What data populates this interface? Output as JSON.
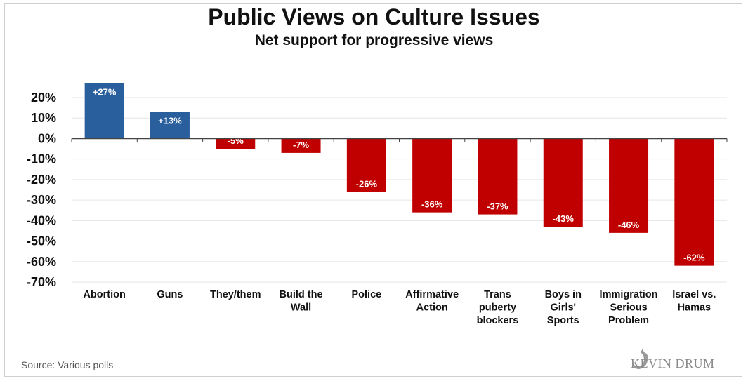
{
  "chart_data": {
    "type": "bar",
    "title": "Public Views on Culture Issues",
    "subtitle": "Net support for progressive views",
    "xlabel": "",
    "ylabel": "",
    "ylim": [
      -70,
      20
    ],
    "yticks": [
      20,
      10,
      0,
      -10,
      -20,
      -30,
      -40,
      -50,
      -60,
      -70
    ],
    "ytick_labels": [
      "20%",
      "10%",
      "0%",
      "-10%",
      "-20%",
      "-30%",
      "-40%",
      "-50%",
      "-60%",
      "-70%"
    ],
    "grid": true,
    "categories": [
      [
        "Abortion"
      ],
      [
        "Guns"
      ],
      [
        "They/them"
      ],
      [
        "Build the",
        "Wall"
      ],
      [
        "Police"
      ],
      [
        "Affirmative",
        "Action"
      ],
      [
        "Trans",
        "puberty",
        "blockers"
      ],
      [
        "Boys in",
        "Girls'",
        "Sports"
      ],
      [
        "Immigration",
        "Serious",
        "Problem"
      ],
      [
        "Israel vs.",
        "Hamas"
      ]
    ],
    "values": [
      27,
      13,
      -5,
      -7,
      -26,
      -36,
      -37,
      -43,
      -46,
      -62
    ],
    "data_labels": [
      "+27%",
      "+13%",
      "-5%",
      "-7%",
      "-26%",
      "-36%",
      "-37%",
      "-43%",
      "-46%",
      "-62%"
    ],
    "colors": {
      "positive": "#2a5f9e",
      "negative": "#c00000",
      "grid": "#e6e6e6",
      "axis": "#444444"
    }
  },
  "footer": {
    "source": "Source: Various polls",
    "logo": "KEVIN DRUM"
  }
}
